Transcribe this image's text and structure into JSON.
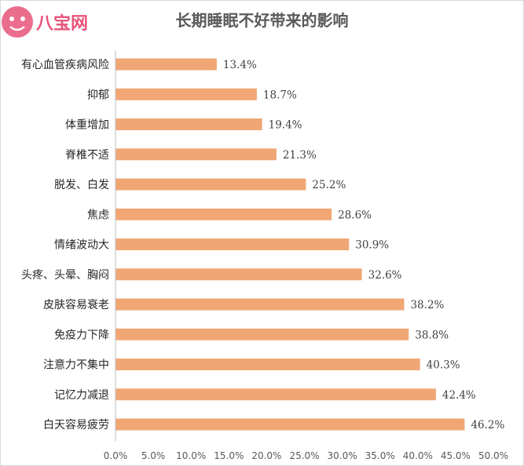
{
  "title": "长期睡眠不好带来的影响",
  "watermark": {
    "text": "八宝网",
    "color": "#e8547a"
  },
  "colors": {
    "bar": "#f0a775",
    "axis": "#bfbfbf",
    "text": "#404040"
  },
  "chart_data": {
    "type": "bar",
    "orientation": "horizontal",
    "title": "长期睡眠不好带来的影响",
    "categories": [
      "有心血管疾病风险",
      "抑郁",
      "体重增加",
      "脊椎不适",
      "脱发、白发",
      "焦虑",
      "情绪波动大",
      "头疼、头晕、胸闷",
      "皮肤容易衰老",
      "免疫力下降",
      "注意力不集中",
      "记忆力减退",
      "白天容易疲劳"
    ],
    "values": [
      13.4,
      18.7,
      19.4,
      21.3,
      25.2,
      28.6,
      30.9,
      32.6,
      38.2,
      38.8,
      40.3,
      42.4,
      46.2
    ],
    "value_labels": [
      "13.4%",
      "18.7%",
      "19.4%",
      "21.3%",
      "25.2%",
      "28.6%",
      "30.9%",
      "32.6%",
      "38.2%",
      "38.8%",
      "40.3%",
      "42.4%",
      "46.2%"
    ],
    "x_ticks": [
      "0.0%",
      "5.0%",
      "10.0%",
      "15.0%",
      "20.0%",
      "25.0%",
      "30.0%",
      "35.0%",
      "40.0%",
      "45.0%",
      "50.0%"
    ],
    "xlim": [
      0,
      50
    ],
    "grid": false,
    "legend": "none"
  }
}
